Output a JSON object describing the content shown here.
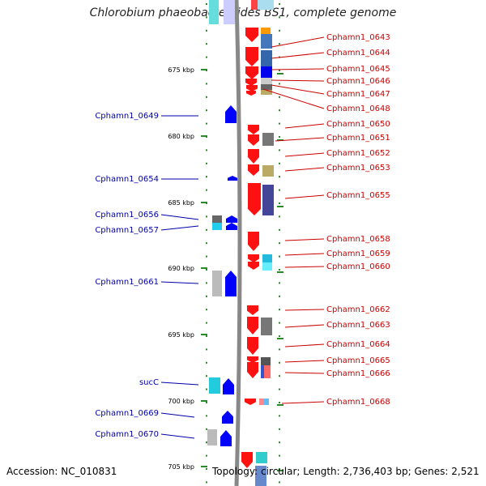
{
  "title": "Chlorobium phaeobacteroides BS1, complete genome",
  "footer": {
    "accession": "Accession: NC_010831",
    "topology": "Topology: circular; Length: 2,736,403 bp; Genes: 2,521"
  },
  "colors": {
    "forward_label": "#cc0000",
    "reverse_label": "#0000aa",
    "cds_forward": "#ff0000",
    "cds_reverse": "#0000ff",
    "backbone": "#888888",
    "tick": "#2a8a2a"
  },
  "scale_labels": [
    "675 kbp",
    "680 kbp",
    "685 kbp",
    "690 kbp",
    "695 kbp",
    "700 kbp",
    "705 kbp"
  ],
  "right_labels": [
    "Cphamn1_0643",
    "Cphamn1_0644",
    "Cphamn1_0645",
    "Cphamn1_0646",
    "Cphamn1_0647",
    "Cphamn1_0648",
    "Cphamn1_0650",
    "Cphamn1_0651",
    "Cphamn1_0652",
    "Cphamn1_0653",
    "Cphamn1_0655",
    "Cphamn1_0658",
    "Cphamn1_0659",
    "Cphamn1_0660",
    "Cphamn1_0662",
    "Cphamn1_0663",
    "Cphamn1_0664",
    "Cphamn1_0665",
    "Cphamn1_0666",
    "Cphamn1_0668"
  ],
  "left_labels": [
    "Cphamn1_0649",
    "Cphamn1_0654",
    "Cphamn1_0656",
    "Cphamn1_0657",
    "Cphamn1_0661",
    "sucC",
    "Cphamn1_0669",
    "Cphamn1_0670"
  ]
}
